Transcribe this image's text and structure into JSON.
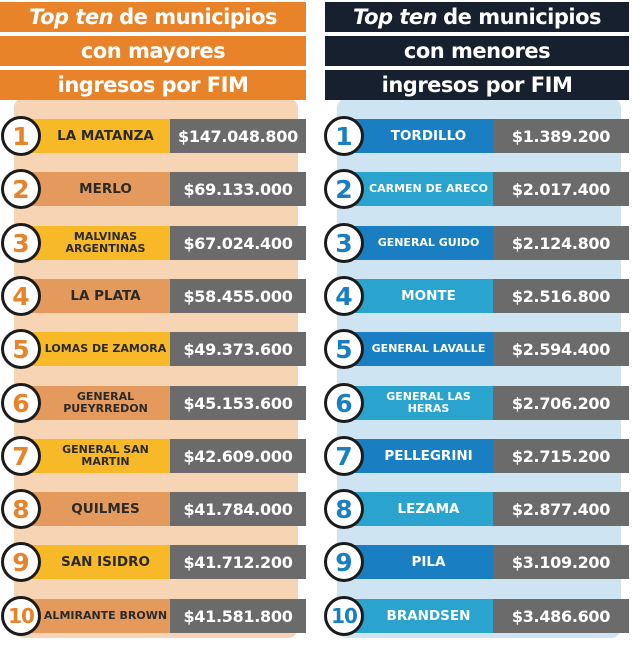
{
  "colors": {
    "left_accent": "#e8832a",
    "left_bg": "#f7d4b3",
    "left_name_alt_a": "#f7b928",
    "left_name_alt_b": "#e49a5c",
    "right_header": "#16202e",
    "right_bg": "#cfe4f2",
    "right_name_alt_a": "#1a7fc2",
    "right_name_alt_b": "#2aa3cf",
    "value_box": "#6b6b6b"
  },
  "left": {
    "title": {
      "line1_em": "Top ten",
      "line1_rest": "de municipios",
      "line2": "con mayores",
      "line3": "ingresos por FIM"
    },
    "rows": [
      {
        "rank": "1",
        "name": "LA MATANZA",
        "value": "$147.048.800"
      },
      {
        "rank": "2",
        "name": "MERLO",
        "value": "$69.133.000"
      },
      {
        "rank": "3",
        "name": "MALVINAS ARGENTINAS",
        "value": "$67.024.400"
      },
      {
        "rank": "4",
        "name": "LA PLATA",
        "value": "$58.455.000"
      },
      {
        "rank": "5",
        "name": "LOMAS DE ZAMORA",
        "value": "$49.373.600"
      },
      {
        "rank": "6",
        "name": "GENERAL PUEYRREDON",
        "value": "$45.153.600"
      },
      {
        "rank": "7",
        "name": "GENERAL SAN MARTIN",
        "value": "$42.609.000"
      },
      {
        "rank": "8",
        "name": "QUILMES",
        "value": "$41.784.000"
      },
      {
        "rank": "9",
        "name": "SAN ISIDRO",
        "value": "$41.712.200"
      },
      {
        "rank": "10",
        "name": "ALMIRANTE BROWN",
        "value": "$41.581.800"
      }
    ]
  },
  "right": {
    "title": {
      "line1_em": "Top ten",
      "line1_rest": "de municipios",
      "line2": "con menores",
      "line3": "ingresos por FIM"
    },
    "rows": [
      {
        "rank": "1",
        "name": "TORDILLO",
        "value": "$1.389.200"
      },
      {
        "rank": "2",
        "name": "CARMEN DE ARECO",
        "value": "$2.017.400"
      },
      {
        "rank": "3",
        "name": "GENERAL GUIDO",
        "value": "$2.124.800"
      },
      {
        "rank": "4",
        "name": "MONTE",
        "value": "$2.516.800"
      },
      {
        "rank": "5",
        "name": "GENERAL LAVALLE",
        "value": "$2.594.400"
      },
      {
        "rank": "6",
        "name": "GENERAL LAS HERAS",
        "value": "$2.706.200"
      },
      {
        "rank": "7",
        "name": "PELLEGRINI",
        "value": "$2.715.200"
      },
      {
        "rank": "8",
        "name": "LEZAMA",
        "value": "$2.877.400"
      },
      {
        "rank": "9",
        "name": "PILA",
        "value": "$3.109.200"
      },
      {
        "rank": "10",
        "name": "BRANDSEN",
        "value": "$3.486.600"
      }
    ]
  }
}
